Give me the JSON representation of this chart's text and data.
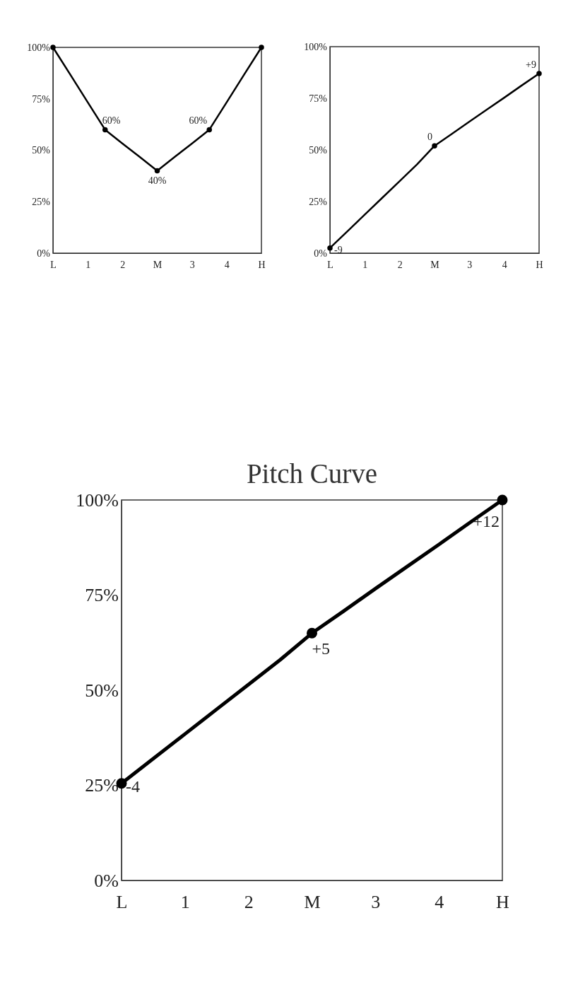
{
  "chart_data": [
    {
      "type": "line",
      "categories": [
        "L",
        null,
        "1",
        null,
        "2",
        null,
        "M",
        null,
        "3",
        null,
        "4",
        null,
        "H"
      ],
      "series": [
        {
          "type": "line",
          "marker": "none",
          "color": "#000000",
          "values": [
            100,
            86.7,
            73.3,
            60,
            53.3,
            46.7,
            40,
            46.7,
            53.3,
            60,
            73.3,
            86.7,
            100
          ]
        },
        {
          "type": "scatter",
          "marker": "circle",
          "color": "#000000",
          "values": [
            100,
            null,
            null,
            60,
            null,
            null,
            40,
            null,
            null,
            60,
            null,
            null,
            100
          ],
          "value_labels": [
            null,
            null,
            null,
            "60%",
            null,
            null,
            "40%",
            null,
            null,
            "60%",
            null,
            null,
            null
          ]
        }
      ],
      "ylim": [
        0,
        100
      ],
      "yticks": [
        {
          "value": 0,
          "label": "0%"
        },
        {
          "value": 25,
          "label": "25%"
        },
        {
          "value": 50,
          "label": "50%"
        },
        {
          "value": 75,
          "label": "75%"
        },
        {
          "value": 100,
          "label": "100%"
        }
      ],
      "grid": false,
      "line_style": "solid"
    },
    {
      "type": "line",
      "categories": [
        "L",
        null,
        "1",
        null,
        "2",
        null,
        "M",
        null,
        "3",
        null,
        "4",
        null,
        "H"
      ],
      "series": [
        {
          "type": "line",
          "marker": "none",
          "color": "#000000",
          "values": [
            2.5,
            10.6,
            18.7,
            26.8,
            34.9,
            43,
            52,
            57.8,
            63.7,
            69.5,
            75.3,
            81.2,
            87
          ]
        },
        {
          "type": "scatter",
          "marker": "circle",
          "color": "#000000",
          "values": [
            2.5,
            null,
            null,
            null,
            null,
            null,
            52,
            null,
            null,
            null,
            null,
            null,
            87
          ]
        }
      ],
      "annotations": [
        {
          "text": "-9",
          "x": "L",
          "y": 2.5
        },
        {
          "text": "0",
          "x": "M",
          "y": 52
        },
        {
          "text": "+9",
          "x": "H",
          "y": 87
        }
      ],
      "ylim": [
        0,
        100
      ],
      "yticks": [
        {
          "value": 0,
          "label": "0%"
        },
        {
          "value": 25,
          "label": "25%"
        },
        {
          "value": 50,
          "label": "50%"
        },
        {
          "value": 75,
          "label": "75%"
        },
        {
          "value": 100,
          "label": "100%"
        }
      ],
      "grid": false,
      "line_style": "solid"
    },
    {
      "type": "line",
      "title": "Pitch Curve",
      "categories": [
        "L",
        null,
        "1",
        null,
        "2",
        null,
        "M",
        null,
        "3",
        null,
        "4",
        null,
        "H"
      ],
      "series": [
        {
          "type": "line",
          "marker": "none",
          "color": "#000000",
          "values": [
            25.5,
            32,
            38.5,
            45,
            51.5,
            58,
            65,
            70.8,
            76.7,
            82.5,
            88.3,
            94.2,
            100
          ]
        },
        {
          "type": "scatter",
          "marker": "circle",
          "color": "#000000",
          "values": [
            25.5,
            null,
            null,
            null,
            null,
            null,
            65,
            null,
            null,
            null,
            null,
            null,
            100
          ]
        }
      ],
      "annotations": [
        {
          "text": "-4",
          "x": "L",
          "y": 25.5
        },
        {
          "text": "+5",
          "x": "M",
          "y": 65
        },
        {
          "text": "+12",
          "x": "H",
          "y": 100
        }
      ],
      "ylim": [
        0,
        100
      ],
      "yticks": [
        {
          "value": 0,
          "label": "0%"
        },
        {
          "value": 25,
          "label": "25%"
        },
        {
          "value": 50,
          "label": "50%"
        },
        {
          "value": 75,
          "label": "75%"
        },
        {
          "value": 100,
          "label": "100%"
        }
      ],
      "grid": false,
      "line_style": "solid"
    }
  ]
}
